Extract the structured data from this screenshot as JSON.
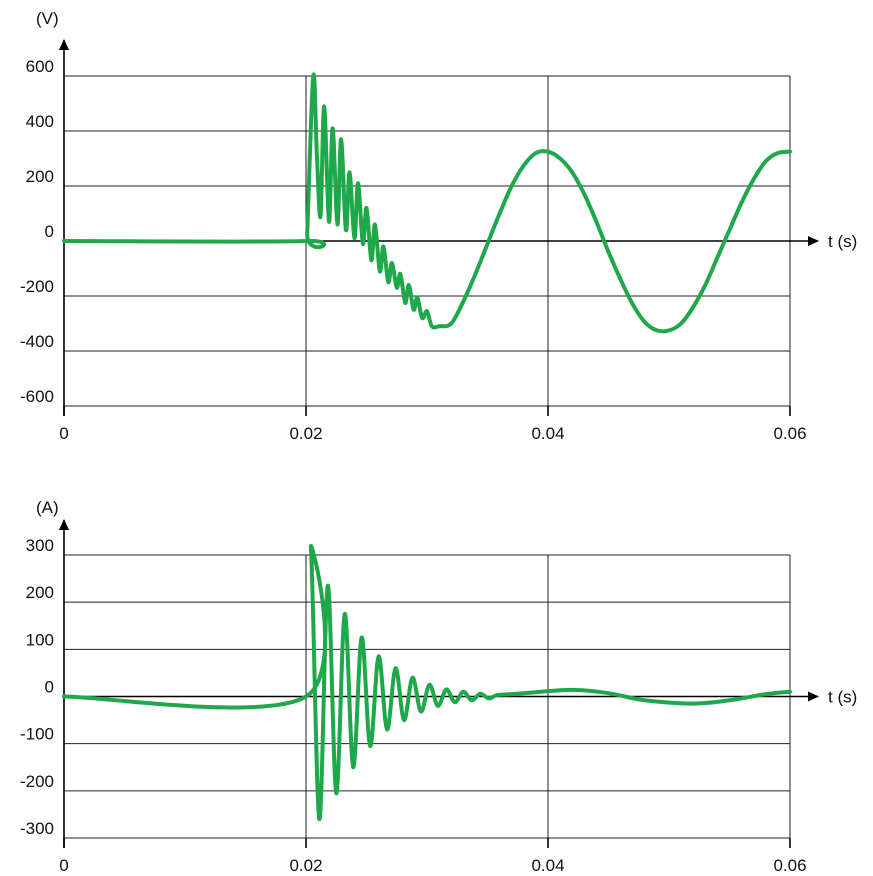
{
  "colors": {
    "series": "#1fa84a",
    "grid": "#222222",
    "axis": "#000000"
  },
  "chart_data": [
    {
      "type": "line",
      "title": "",
      "ylabel": "(V)",
      "xlabel": "t (s)",
      "xlim": [
        0,
        0.06
      ],
      "ylim": [
        -600,
        600
      ],
      "xticks": [
        0,
        0.02,
        0.04,
        0.06
      ],
      "x_tick_labels": [
        "0",
        "0.02",
        "0.04",
        "0.06"
      ],
      "yticks": [
        600,
        400,
        200,
        0,
        -200,
        -400,
        -600
      ],
      "y_tick_labels": [
        "600",
        "400",
        "200",
        "0",
        "-200",
        "-400",
        "-600"
      ],
      "grid": true,
      "series": [
        {
          "x": [
            0,
            0.02,
            0.0201,
            0.0206,
            0.0209,
            0.0212,
            0.0215,
            0.0219,
            0.0222,
            0.0226,
            0.0229,
            0.0233,
            0.0236,
            0.024,
            0.0243,
            0.0247,
            0.025,
            0.0254,
            0.0257,
            0.0261,
            0.0264,
            0.0268,
            0.0271,
            0.0275,
            0.0278,
            0.0282,
            0.0285,
            0.0289,
            0.0292,
            0.0296,
            0.03,
            0.0304,
            0.031,
            0.032,
            0.033,
            0.034,
            0.035,
            0.036,
            0.037,
            0.038,
            0.039,
            0.04,
            0.041,
            0.042,
            0.043,
            0.044,
            0.045,
            0.046,
            0.047,
            0.048,
            0.049,
            0.05,
            0.051,
            0.052,
            0.053,
            0.054,
            0.055,
            0.056,
            0.057,
            0.058,
            0.059,
            0.06
          ],
          "values": [
            0,
            0,
            30,
            600,
            310,
            90,
            490,
            70,
            410,
            60,
            370,
            40,
            250,
            10,
            210,
            -10,
            120,
            -70,
            60,
            -110,
            -20,
            -150,
            -80,
            -170,
            -120,
            -225,
            -160,
            -250,
            -205,
            -280,
            -255,
            -310,
            -310,
            -300,
            -220,
            -120,
            -10,
            100,
            200,
            275,
            320,
            325,
            300,
            250,
            170,
            70,
            -40,
            -140,
            -230,
            -295,
            -325,
            -325,
            -300,
            -240,
            -160,
            -60,
            40,
            140,
            225,
            290,
            320,
            325
          ]
        }
      ]
    },
    {
      "type": "line",
      "title": "",
      "ylabel": "(A)",
      "xlabel": "t (s)",
      "xlim": [
        0,
        0.06
      ],
      "ylim": [
        -300,
        300
      ],
      "xticks": [
        0,
        0.02,
        0.04,
        0.06
      ],
      "x_tick_labels": [
        "0",
        "0.02",
        "0.04",
        "0.06"
      ],
      "yticks": [
        300,
        200,
        100,
        0,
        -100,
        -200,
        -300
      ],
      "y_tick_labels": [
        "300",
        "200",
        "100",
        "0",
        "-100",
        "-200",
        "-300"
      ],
      "grid": true,
      "series": [
        {
          "x": [
            0,
            0.02,
            0.0204,
            0.0211,
            0.0218,
            0.0225,
            0.0232,
            0.0239,
            0.0246,
            0.0253,
            0.026,
            0.0267,
            0.0274,
            0.0281,
            0.0288,
            0.0295,
            0.0302,
            0.0309,
            0.0316,
            0.0323,
            0.033,
            0.0337,
            0.0344,
            0.0351,
            0.0358,
            0.037,
            0.039,
            0.042,
            0.045,
            0.048,
            0.052,
            0.055,
            0.058,
            0.06
          ],
          "values": [
            0,
            0,
            315,
            -260,
            235,
            -205,
            175,
            -150,
            125,
            -105,
            85,
            -70,
            60,
            -50,
            40,
            -32,
            25,
            -20,
            15,
            -12,
            10,
            -8,
            6,
            -4,
            3,
            5,
            9,
            14,
            7,
            -8,
            -15,
            -8,
            5,
            10
          ]
        }
      ]
    }
  ]
}
